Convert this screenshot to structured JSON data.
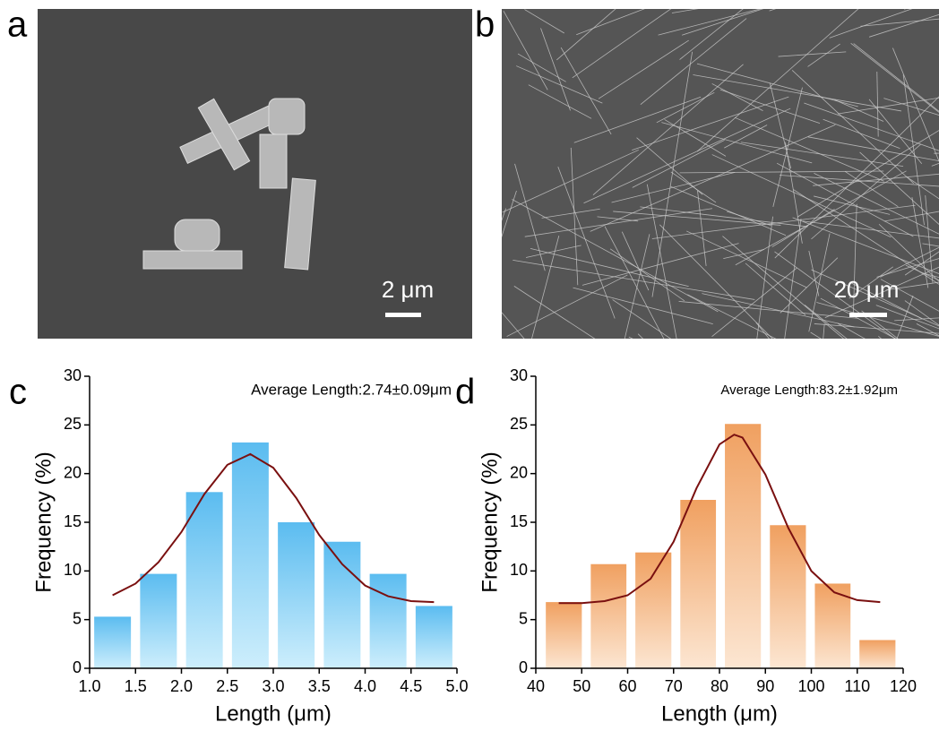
{
  "panels": [
    {
      "label": "a",
      "scale_bar": "2 μm"
    },
    {
      "label": "b",
      "scale_bar": "20 μm"
    }
  ],
  "chart_data": [
    {
      "type": "histogram",
      "panel_label": "c",
      "annotation": "Average Length:2.74±0.09μm",
      "x_label": "Length (μm)",
      "y_label": "Frequency (%)",
      "bins": [
        1.0,
        1.5,
        2.0,
        2.5,
        3.0,
        3.5,
        4.0,
        4.5,
        5.0
      ],
      "values": [
        5.3,
        9.7,
        18.1,
        23.2,
        15.0,
        13.0,
        9.7,
        6.4
      ],
      "color": "#5bbcf0",
      "color_light": "#cdeefc",
      "fit": {
        "color": "#7a1010",
        "x": [
          1.25,
          1.5,
          1.75,
          2.0,
          2.25,
          2.5,
          2.75,
          3.0,
          3.25,
          3.5,
          3.75,
          4.0,
          4.25,
          4.5,
          4.75
        ],
        "values": [
          7.5,
          8.7,
          10.9,
          14.0,
          17.9,
          20.9,
          22.0,
          20.6,
          17.5,
          13.7,
          10.7,
          8.5,
          7.4,
          6.9,
          6.8
        ]
      },
      "xlim": [
        1.0,
        5.0
      ],
      "ylim": [
        0,
        30
      ],
      "xticks": [
        {
          "value": 1,
          "label": "1.0"
        },
        1.5,
        {
          "value": 2,
          "label": "2.0"
        },
        2.5,
        {
          "value": 3,
          "label": "3.0"
        },
        3.5,
        {
          "value": 4,
          "label": "4.0"
        },
        4.5,
        {
          "value": 5,
          "label": "5.0"
        }
      ],
      "yticks": [
        0,
        5,
        10,
        15,
        20,
        25,
        30
      ]
    },
    {
      "type": "histogram",
      "panel_label": "d",
      "annotation": "Average Length:83.2±1.92μm",
      "x_label": "Length (μm)",
      "y_label": "Frequency (%)",
      "bins": [
        41.2,
        51.0,
        60.7,
        70.5,
        80.2,
        90.0,
        99.8,
        109.5,
        119.3
      ],
      "values": [
        6.8,
        10.7,
        11.9,
        17.3,
        25.1,
        14.7,
        8.7,
        2.9
      ],
      "color": "#f0a060",
      "color_light": "#fce6d2",
      "fit": {
        "color": "#7a1010",
        "x": [
          45,
          50,
          55,
          60,
          65,
          70,
          75,
          80,
          83.2,
          85,
          90,
          95,
          100,
          105,
          110,
          115
        ],
        "values": [
          6.7,
          6.7,
          6.9,
          7.5,
          9.2,
          13.0,
          18.5,
          23.0,
          24.0,
          23.7,
          19.9,
          14.4,
          10.0,
          7.8,
          7.0,
          6.8
        ]
      },
      "xlim": [
        40,
        120
      ],
      "ylim": [
        0,
        30
      ],
      "xticks": [
        40,
        50,
        60,
        70,
        80,
        90,
        100,
        110,
        120
      ],
      "yticks": [
        0,
        5,
        10,
        15,
        20,
        25,
        30
      ]
    }
  ]
}
